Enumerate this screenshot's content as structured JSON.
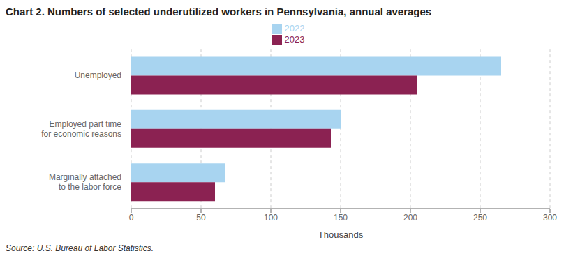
{
  "chart_data": {
    "type": "bar",
    "orientation": "horizontal",
    "title": "Chart 2. Numbers of selected underutilized workers in Pennsylvania, annual averages",
    "categories": [
      "Marginally attached\nto the labor force",
      "Employed part time\nfor economic reasons",
      "Unemployed"
    ],
    "series": [
      {
        "name": "2022",
        "color": "#a8d4f0",
        "values": [
          67,
          150,
          265
        ]
      },
      {
        "name": "2023",
        "color": "#8b2252",
        "values": [
          60,
          143,
          205
        ]
      }
    ],
    "xlabel": "Thousands",
    "xlim": [
      0,
      300
    ],
    "xticks": [
      0,
      50,
      100,
      150,
      200,
      250,
      300
    ],
    "grid": true,
    "legend": "top",
    "annotations": [
      "Source: U.S. Bureau of Labor Statistics."
    ]
  }
}
